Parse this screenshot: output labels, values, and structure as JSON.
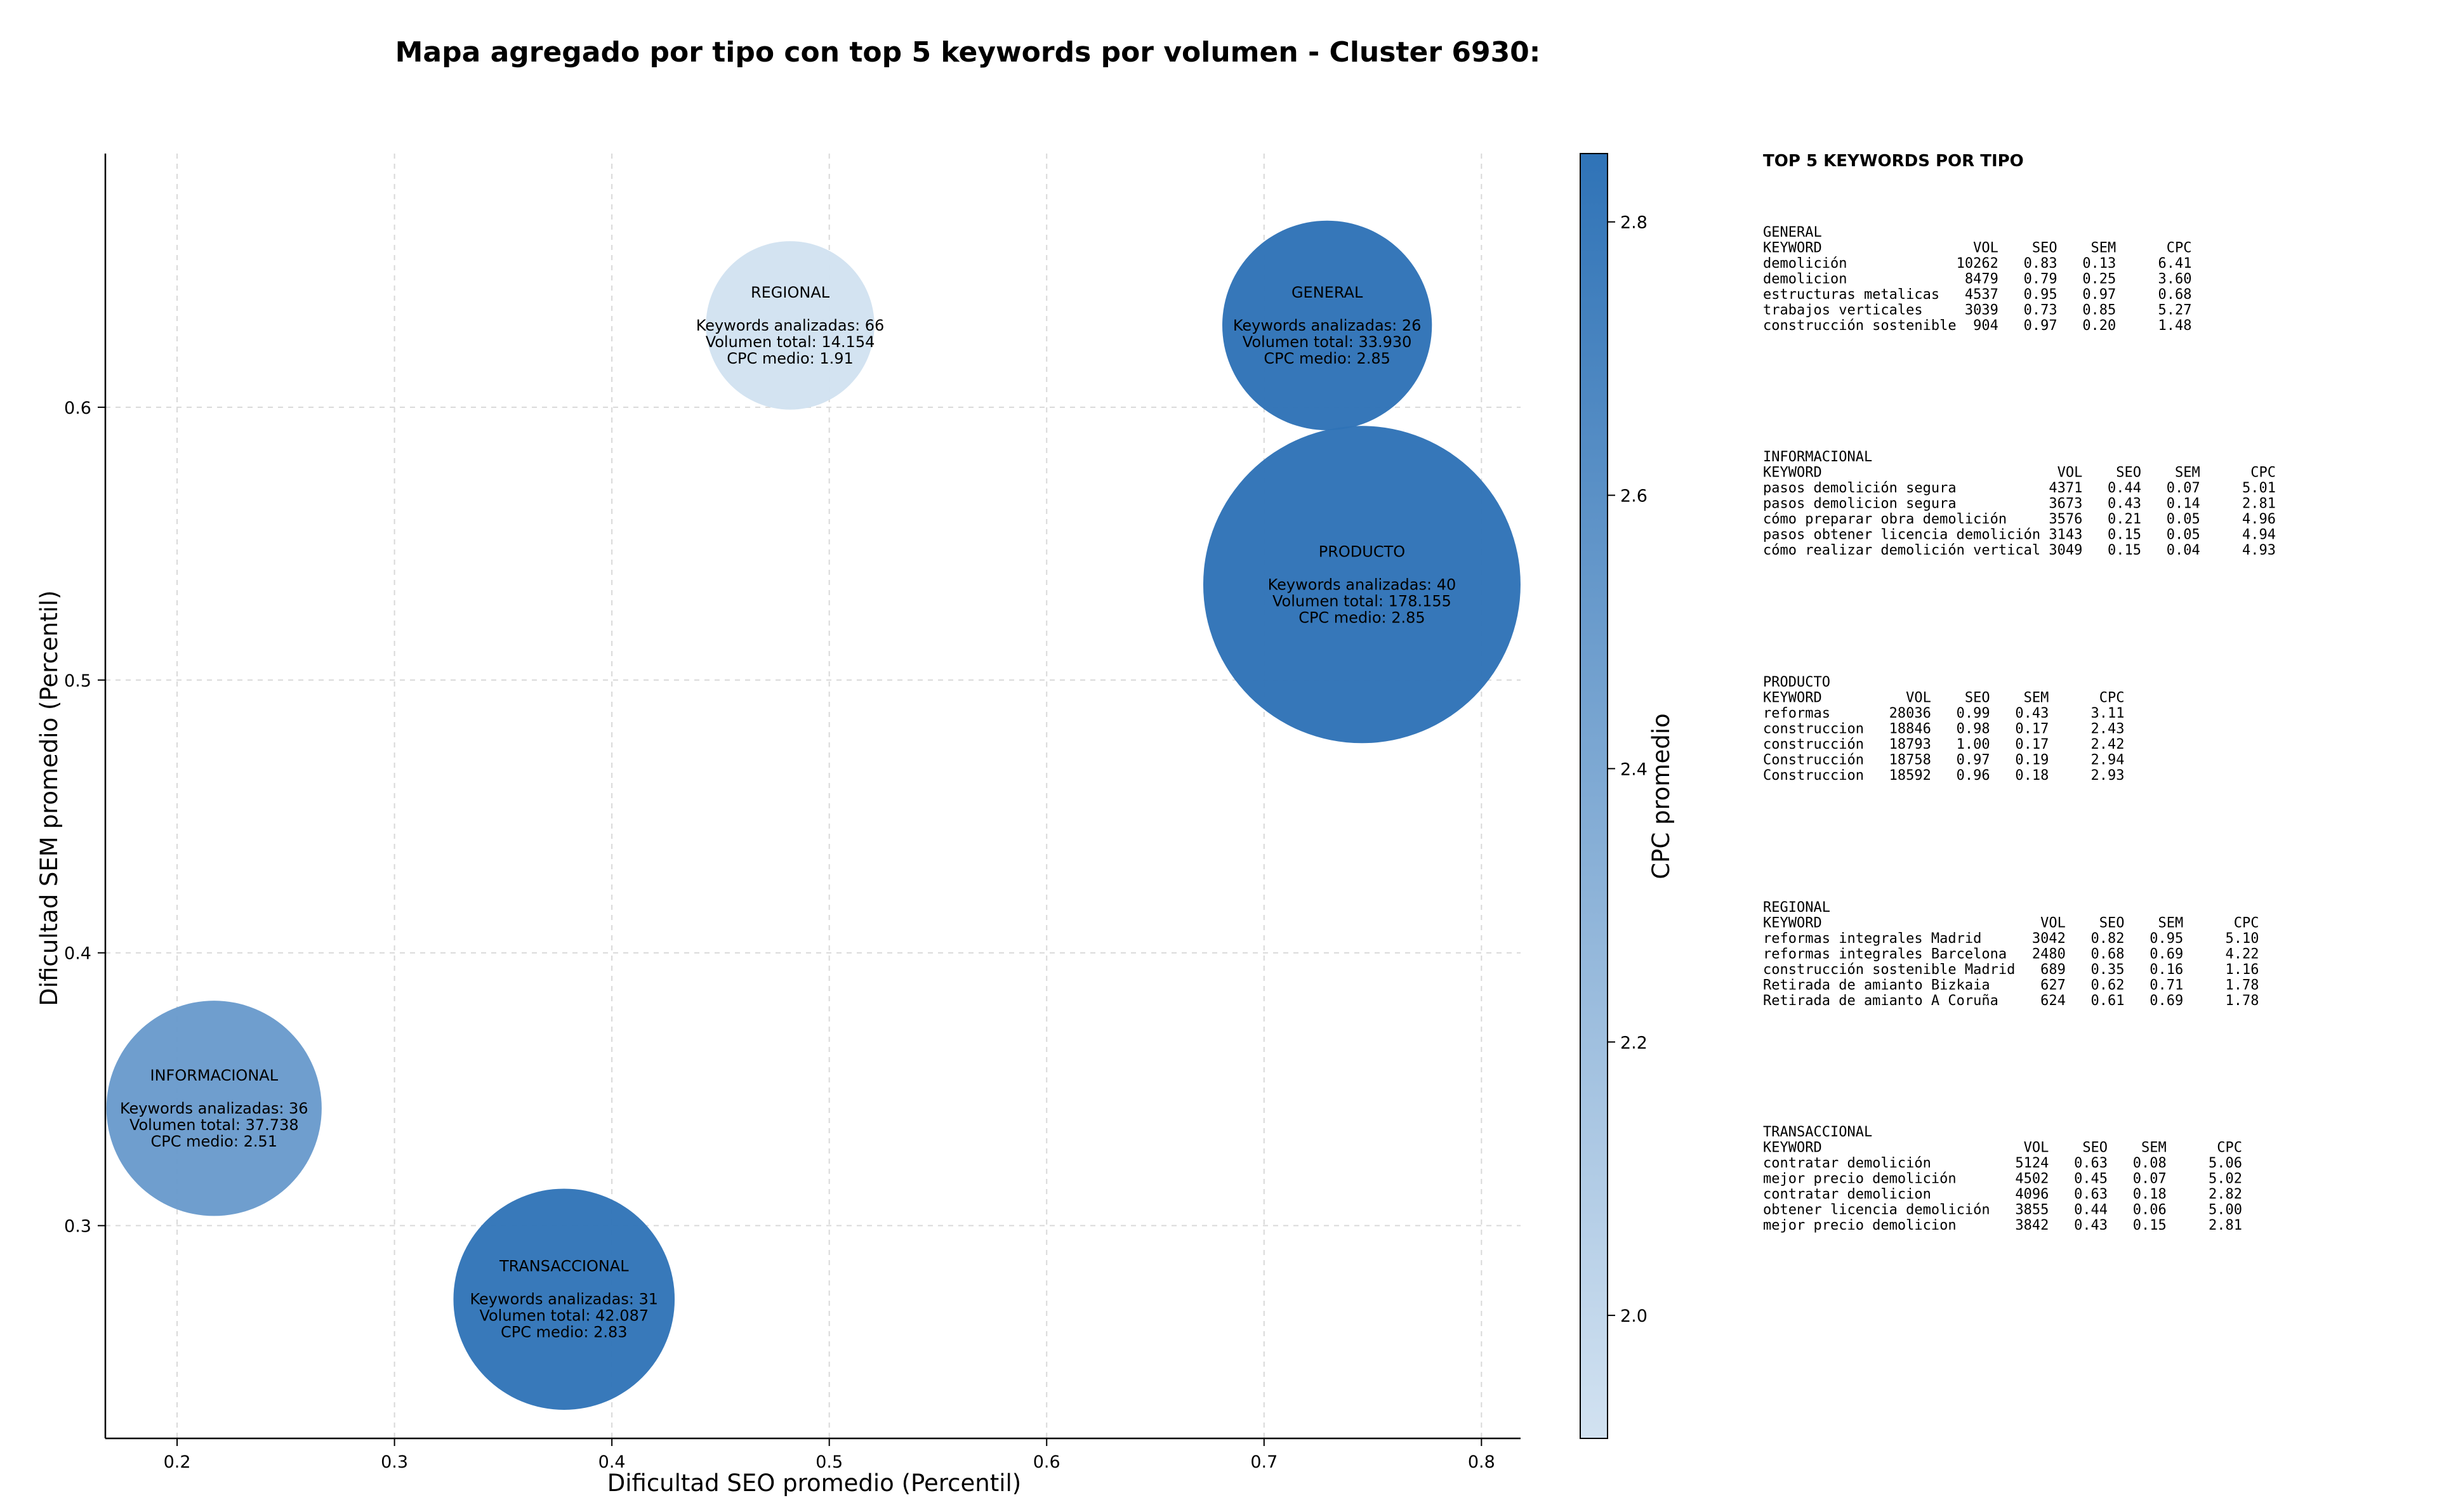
{
  "chart_data": {
    "type": "scatter",
    "title": "Mapa agregado por tipo con top 5 keywords por volumen - Cluster 6930:",
    "xlabel": "Dificultad SEO promedio (Percentil)",
    "ylabel": "Dificultad SEM promedio (Percentil)",
    "xlim": [
      0.167,
      0.818
    ],
    "ylim": [
      0.222,
      0.693
    ],
    "xticks": [
      "0.2",
      "0.3",
      "0.4",
      "0.5",
      "0.6",
      "0.7",
      "0.8"
    ],
    "yticks": [
      "0.3",
      "0.4",
      "0.5",
      "0.6"
    ],
    "grid": true,
    "colorbar": {
      "label": "CPC promedio",
      "range": [
        1.91,
        2.85
      ],
      "ticks": [
        "2.0",
        "2.2",
        "2.4",
        "2.6",
        "2.8"
      ],
      "color_low": "#d2e2f1",
      "color_high": "#2f73b7"
    },
    "points": [
      {
        "tipo": "GENERAL",
        "x": 0.729,
        "y": 0.63,
        "cpc": 2.85,
        "volume": 33930,
        "lines": [
          "GENERAL",
          "",
          "Keywords analizadas: 26",
          "Volumen total: 33.930",
          "CPC medio: 2.85"
        ]
      },
      {
        "tipo": "INFORMACIONAL",
        "x": 0.217,
        "y": 0.343,
        "cpc": 2.51,
        "volume": 37738,
        "lines": [
          "INFORMACIONAL",
          "",
          "Keywords analizadas: 36",
          "Volumen total: 37.738",
          "CPC medio: 2.51"
        ]
      },
      {
        "tipo": "PRODUCTO",
        "x": 0.745,
        "y": 0.535,
        "cpc": 2.85,
        "volume": 178155,
        "lines": [
          "PRODUCTO",
          "",
          "Keywords analizadas: 40",
          "Volumen total: 178.155",
          "CPC medio: 2.85"
        ]
      },
      {
        "tipo": "REGIONAL",
        "x": 0.482,
        "y": 0.63,
        "cpc": 1.91,
        "volume": 14154,
        "lines": [
          "REGIONAL",
          "",
          "Keywords analizadas: 66",
          "Volumen total: 14.154",
          "CPC medio: 1.91"
        ]
      },
      {
        "tipo": "TRANSACCIONAL",
        "x": 0.378,
        "y": 0.273,
        "cpc": 2.83,
        "volume": 42087,
        "lines": [
          "TRANSACCIONAL",
          "",
          "Keywords analizadas: 31",
          "Volumen total: 42.087",
          "CPC medio: 2.83"
        ]
      }
    ],
    "side_panel": {
      "heading": "TOP 5 KEYWORDS POR TIPO",
      "blocks": [
        {
          "lines": [
            "GENERAL",
            "KEYWORD                  VOL    SEO    SEM      CPC",
            "demolición             10262   0.83   0.13     6.41",
            "demolicion              8479   0.79   0.25     3.60",
            "estructuras metalicas   4537   0.95   0.97     0.68",
            "trabajos verticales     3039   0.73   0.85     5.27",
            "construcción sostenible  904   0.97   0.20     1.48"
          ]
        },
        {
          "lines": [
            "INFORMACIONAL",
            "KEYWORD                            VOL    SEO    SEM      CPC",
            "pasos demolición segura           4371   0.44   0.07     5.01",
            "pasos demolicion segura           3673   0.43   0.14     2.81",
            "cómo preparar obra demolición     3576   0.21   0.05     4.96",
            "pasos obtener licencia demolición 3143   0.15   0.05     4.94",
            "cómo realizar demolición vertical 3049   0.15   0.04     4.93"
          ]
        },
        {
          "lines": [
            "PRODUCTO",
            "KEYWORD          VOL    SEO    SEM      CPC",
            "reformas       28036   0.99   0.43     3.11",
            "construccion   18846   0.98   0.17     2.43",
            "construcción   18793   1.00   0.17     2.42",
            "Construcción   18758   0.97   0.19     2.94",
            "Construccion   18592   0.96   0.18     2.93"
          ]
        },
        {
          "lines": [
            "REGIONAL",
            "KEYWORD                          VOL    SEO    SEM      CPC",
            "reformas integrales Madrid      3042   0.82   0.95     5.10",
            "reformas integrales Barcelona   2480   0.68   0.69     4.22",
            "construcción sostenible Madrid   689   0.35   0.16     1.16",
            "Retirada de amianto Bizkaia      627   0.62   0.71     1.78",
            "Retirada de amianto A Coruña     624   0.61   0.69     1.78"
          ]
        },
        {
          "lines": [
            "TRANSACCIONAL",
            "KEYWORD                        VOL    SEO    SEM      CPC",
            "contratar demolición          5124   0.63   0.08     5.06",
            "mejor precio demolición       4502   0.45   0.07     5.02",
            "contratar demolicion          4096   0.63   0.18     2.82",
            "obtener licencia demolición   3855   0.44   0.06     5.00",
            "mejor precio demolicion       3842   0.43   0.15     2.81"
          ]
        }
      ]
    }
  }
}
